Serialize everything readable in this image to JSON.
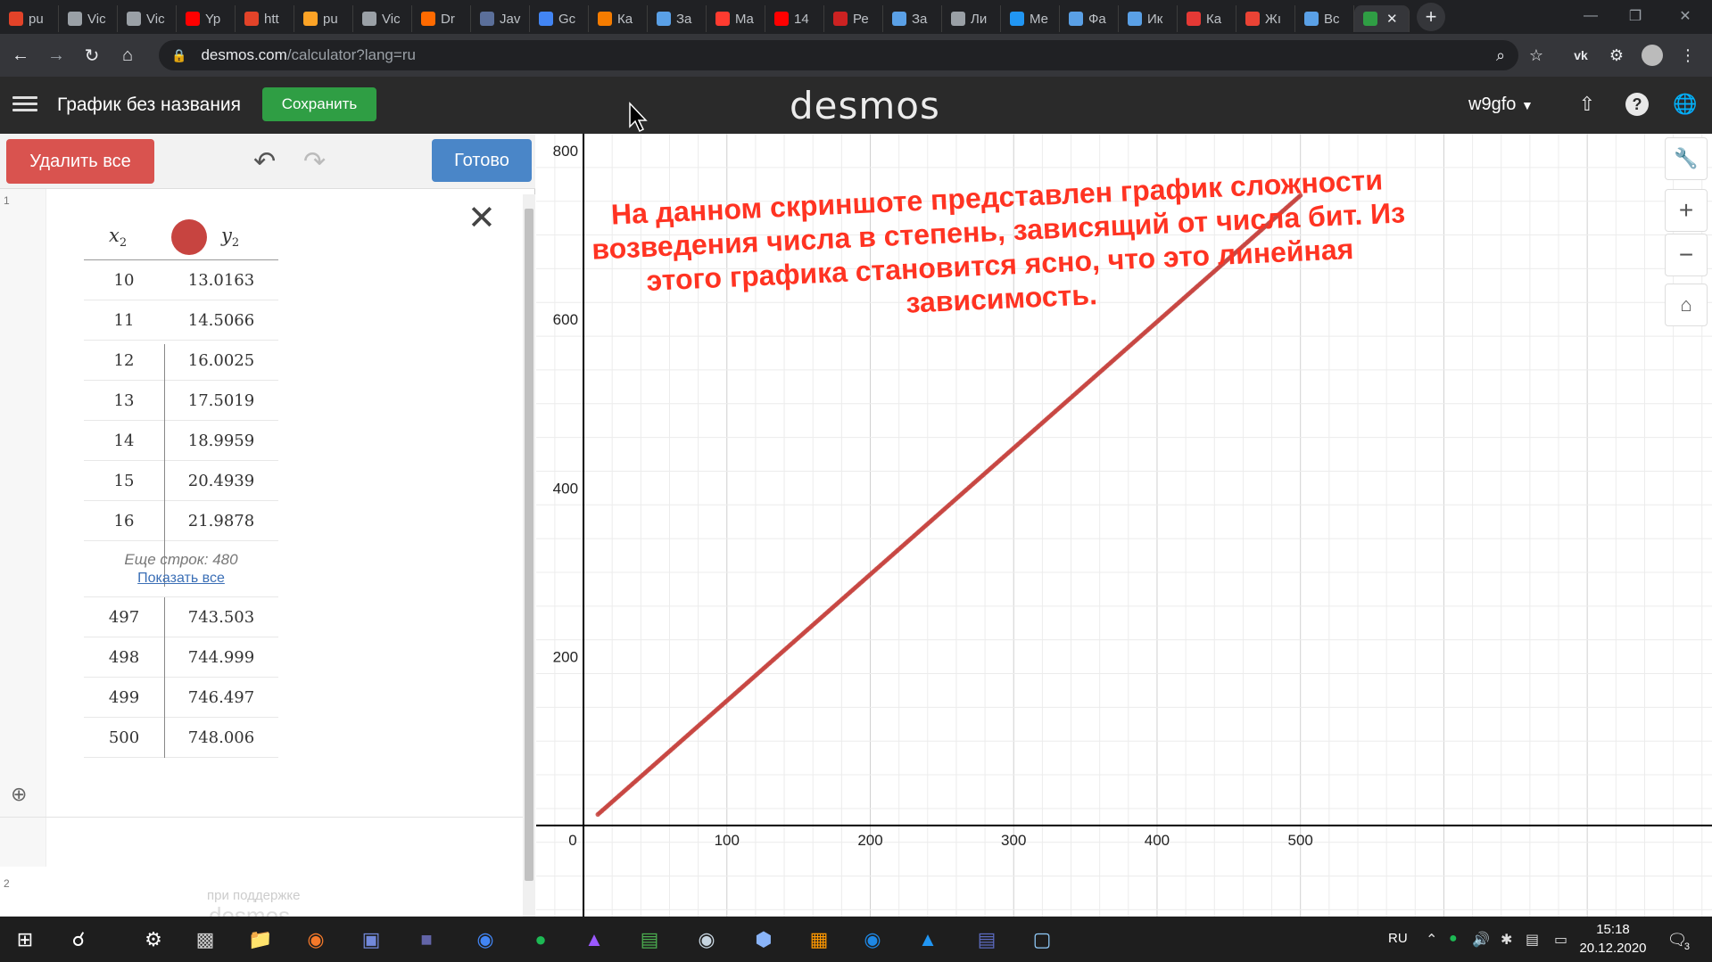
{
  "browser": {
    "tabs": [
      {
        "label": "pu",
        "color": "#e24329"
      },
      {
        "label": "Vic",
        "color": "#9aa0a6"
      },
      {
        "label": "Vic",
        "color": "#9aa0a6"
      },
      {
        "label": "Yp",
        "color": "#ff0000"
      },
      {
        "label": "htt",
        "color": "#e24329"
      },
      {
        "label": "pu",
        "color": "#fca326"
      },
      {
        "label": "Vic",
        "color": "#9aa0a6"
      },
      {
        "label": "Dr",
        "color": "#ff6a00"
      },
      {
        "label": "Jav",
        "color": "#5b6f9a"
      },
      {
        "label": "Gc",
        "color": "#4285f4"
      },
      {
        "label": "Ка",
        "color": "#f57c00"
      },
      {
        "label": "За",
        "color": "#5aa0e6"
      },
      {
        "label": "Ma",
        "color": "#ff3b30"
      },
      {
        "label": "14",
        "color": "#ff0000"
      },
      {
        "label": "Ре",
        "color": "#cc2222"
      },
      {
        "label": "За",
        "color": "#5aa0e6"
      },
      {
        "label": "Ли",
        "color": "#9aa0a6"
      },
      {
        "label": "Ме",
        "color": "#2196f3"
      },
      {
        "label": "Фа",
        "color": "#5aa0e6"
      },
      {
        "label": "Ик",
        "color": "#5aa0e6"
      },
      {
        "label": "Ка",
        "color": "#e53935"
      },
      {
        "label": "Жı",
        "color": "#ea4335"
      },
      {
        "label": "Вс",
        "color": "#5aa0e6"
      }
    ],
    "active_tab_icon": "desmos-favicon",
    "url_host": "desmos.com",
    "url_path": "/calculator?lang=ru"
  },
  "desmos": {
    "graph_title": "График без названия",
    "save_label": "Сохранить",
    "logo": "desmos",
    "user": "w9gfo",
    "delete_all_label": "Удалить все",
    "done_label": "Готово",
    "row_numbers": [
      "1",
      "2"
    ],
    "table": {
      "x_header": "x",
      "x_sub": "2",
      "y_header": "y",
      "y_sub": "2",
      "point_color": "#c74440",
      "rows_top": [
        {
          "x": "10",
          "y": "13.0163"
        },
        {
          "x": "11",
          "y": "14.5066"
        },
        {
          "x": "12",
          "y": "16.0025"
        },
        {
          "x": "13",
          "y": "17.5019"
        },
        {
          "x": "14",
          "y": "18.9959"
        },
        {
          "x": "15",
          "y": "20.4939"
        },
        {
          "x": "16",
          "y": "21.9878"
        }
      ],
      "more_rows_text": "Еще строк: 480",
      "show_all_label": "Показать все",
      "rows_bottom": [
        {
          "x": "497",
          "y": "743.503"
        },
        {
          "x": "498",
          "y": "744.999"
        },
        {
          "x": "499",
          "y": "746.497"
        },
        {
          "x": "500",
          "y": "748.006"
        }
      ]
    },
    "powered_by": "при поддержке",
    "powered_logo": "desmos"
  },
  "annotation_lines": [
    "На данном скриншоте представлен график сложности",
    "возведения числа в степень, зависящий от числа бит. Из",
    "этого графика становится ясно, что это линейная",
    "зависимость."
  ],
  "chart_data": {
    "type": "scatter",
    "x_ticks": [
      "0",
      "100",
      "200",
      "300",
      "400",
      "500"
    ],
    "y_ticks": [
      "200",
      "400",
      "600",
      "800"
    ],
    "xlim": [
      -33,
      787
    ],
    "ylim": [
      -108,
      820
    ],
    "grid": true,
    "series": [
      {
        "color": "#c74440",
        "x_start": 10,
        "x_end": 500,
        "slope": 1.4976,
        "intercept": -1.96
      }
    ]
  },
  "taskbar": {
    "apps": [
      "windows-start-icon",
      "search-icon",
      "settings-icon",
      "terminal-icon",
      "file-explorer-icon",
      "blender-icon",
      "discord-icon",
      "teams-icon",
      "chrome-icon",
      "spotify-icon",
      "visual-studio-icon",
      "notepad-icon",
      "steam-icon",
      "box-icon",
      "sublime-icon",
      "maps-icon",
      "vscode-icon",
      "wsl-terminal-icon",
      "files-icon"
    ],
    "lang": "RU",
    "time": "15:18",
    "date": "20.12.2020",
    "notifications": "3"
  }
}
